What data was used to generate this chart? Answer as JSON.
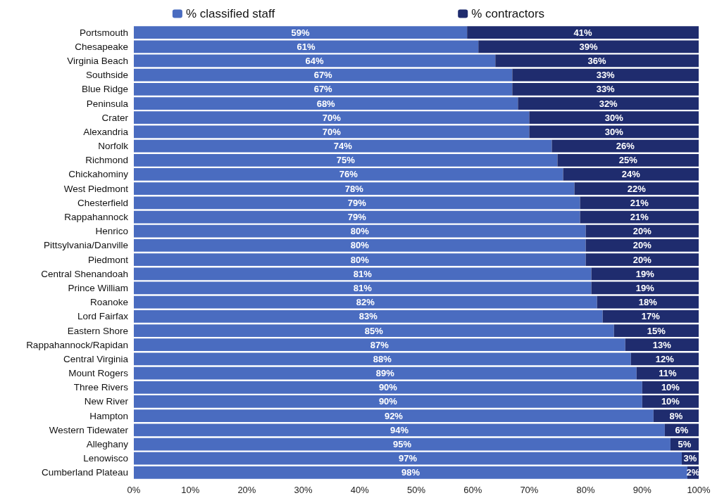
{
  "chart_data": {
    "type": "bar",
    "orientation": "horizontal",
    "stacked": true,
    "grid": false,
    "legend": "top",
    "categories": [
      "Portsmouth",
      "Chesapeake",
      "Virginia Beach",
      "Southside",
      "Blue Ridge",
      "Peninsula",
      "Crater",
      "Alexandria",
      "Norfolk",
      "Richmond",
      "Chickahominy",
      "West Piedmont",
      "Chesterfield",
      "Rappahannock",
      "Henrico",
      "Pittsylvania/Danville",
      "Piedmont",
      "Central Shenandoah",
      "Prince William",
      "Roanoke",
      "Lord Fairfax",
      "Eastern Shore",
      "Rappahannock/Rapidan",
      "Central Virginia",
      "Mount Rogers",
      "Three Rivers",
      "New River",
      "Hampton",
      "Western Tidewater",
      "Alleghany",
      "Lenowisco",
      "Cumberland Plateau"
    ],
    "series": [
      {
        "name": "% classified staff",
        "color": "#4a6cc0",
        "values": [
          59,
          61,
          64,
          67,
          67,
          68,
          70,
          70,
          74,
          75,
          76,
          78,
          79,
          79,
          80,
          80,
          80,
          81,
          81,
          82,
          83,
          85,
          87,
          88,
          89,
          90,
          90,
          92,
          94,
          95,
          97,
          98
        ],
        "value_labels": [
          "59%",
          "61%",
          "64%",
          "67%",
          "67%",
          "68%",
          "70%",
          "70%",
          "74%",
          "75%",
          "76%",
          "78%",
          "79%",
          "79%",
          "80%",
          "80%",
          "80%",
          "81%",
          "81%",
          "82%",
          "83%",
          "85%",
          "87%",
          "88%",
          "89%",
          "90%",
          "90%",
          "92%",
          "94%",
          "95%",
          "97%",
          "98%"
        ]
      },
      {
        "name": "% contractors",
        "color": "#1f2c6e",
        "values": [
          41,
          39,
          36,
          33,
          33,
          32,
          30,
          30,
          26,
          25,
          24,
          22,
          21,
          21,
          20,
          20,
          20,
          19,
          19,
          18,
          17,
          15,
          13,
          12,
          11,
          10,
          10,
          8,
          6,
          5,
          3,
          2
        ],
        "value_labels": [
          "41%",
          "39%",
          "36%",
          "33%",
          "33%",
          "32%",
          "30%",
          "30%",
          "26%",
          "25%",
          "24%",
          "22%",
          "21%",
          "21%",
          "20%",
          "20%",
          "20%",
          "19%",
          "19%",
          "18%",
          "17%",
          "15%",
          "13%",
          "12%",
          "11%",
          "10%",
          "10%",
          "8%",
          "6%",
          "5%",
          "3%",
          "2%"
        ]
      }
    ],
    "xlim": [
      0,
      100
    ],
    "xticks": [
      {
        "value": 0,
        "label": "0%"
      },
      {
        "value": 10,
        "label": "10%"
      },
      {
        "value": 20,
        "label": "20%"
      },
      {
        "value": 30,
        "label": "30%"
      },
      {
        "value": 40,
        "label": "40%"
      },
      {
        "value": 50,
        "label": "50%"
      },
      {
        "value": 60,
        "label": "60%"
      },
      {
        "value": 70,
        "label": "70%"
      },
      {
        "value": 80,
        "label": "80%"
      },
      {
        "value": 90,
        "label": "90%"
      },
      {
        "value": 100,
        "label": "100%"
      }
    ]
  }
}
